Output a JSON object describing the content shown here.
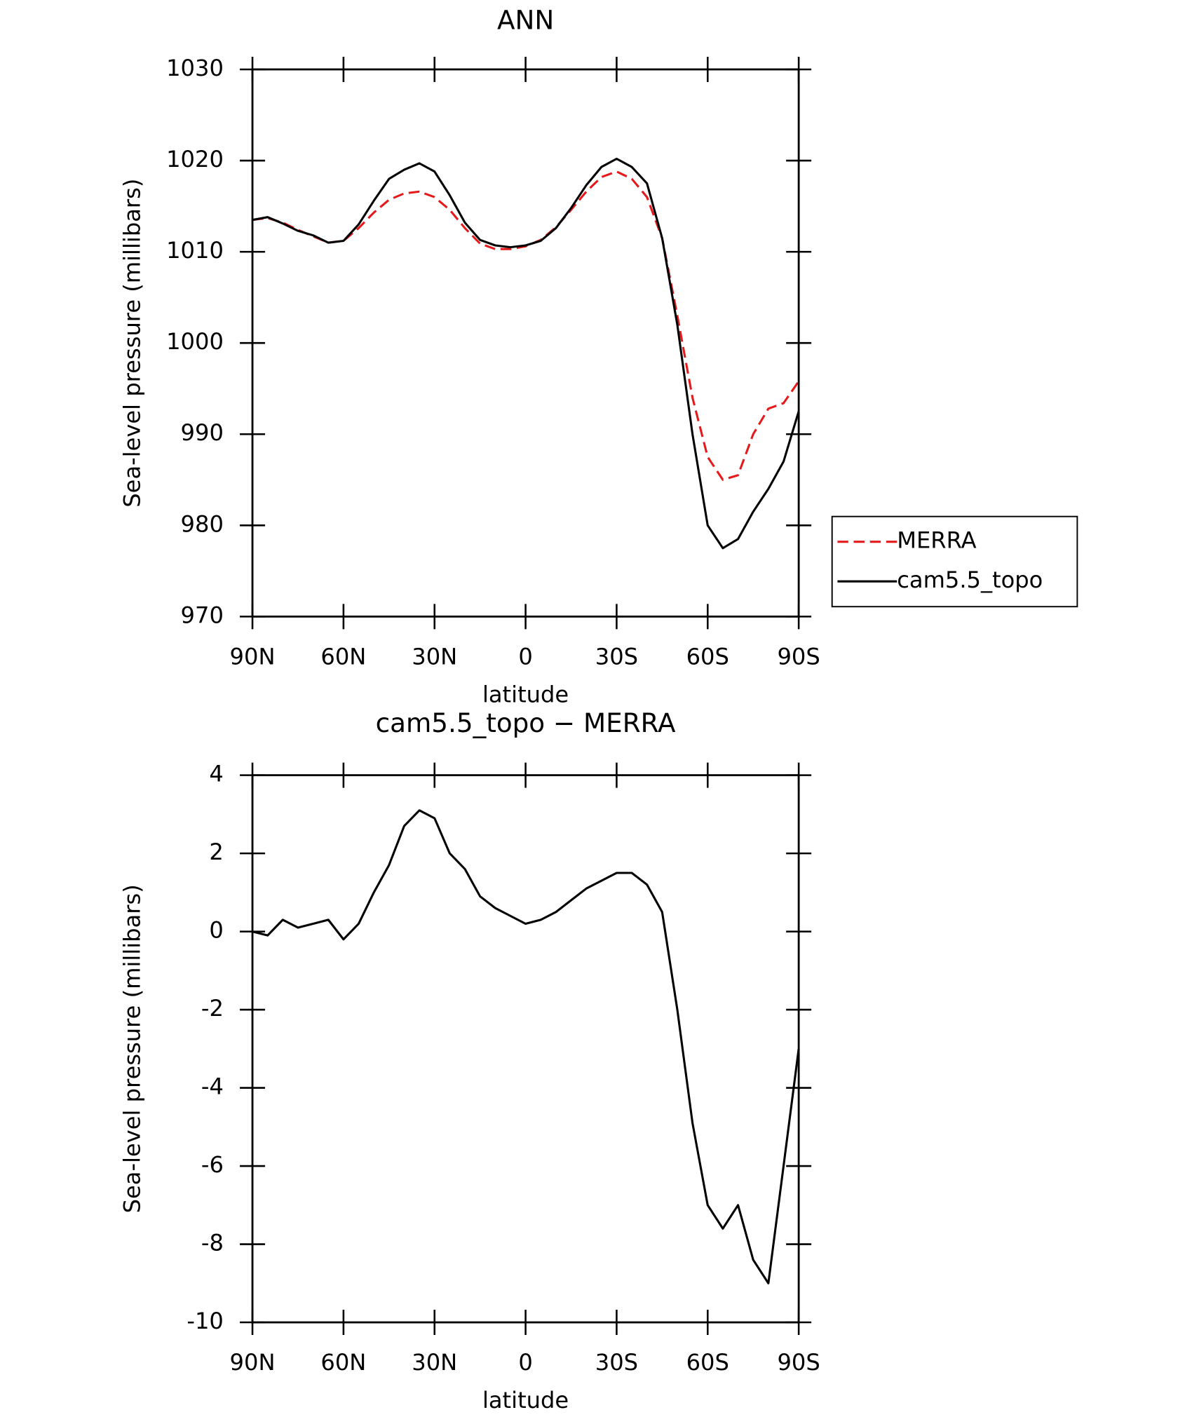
{
  "chart_data": [
    {
      "type": "line",
      "title": "ANN",
      "x_label": "latitude",
      "y_label": "Sea-level pressure (millibars)",
      "x": [
        90,
        85,
        80,
        75,
        70,
        65,
        60,
        55,
        50,
        45,
        40,
        35,
        30,
        25,
        20,
        15,
        10,
        5,
        0,
        -5,
        -10,
        -15,
        -20,
        -25,
        -30,
        -35,
        -40,
        -45,
        -50,
        -55,
        -60,
        -65,
        -70,
        -75,
        -80,
        -85,
        -90
      ],
      "xlim": [
        90,
        -90
      ],
      "xticks": [
        {
          "value": 90,
          "label": "90N"
        },
        {
          "value": 60,
          "label": "60N"
        },
        {
          "value": 30,
          "label": "30N"
        },
        0,
        {
          "value": -30,
          "label": "30S"
        },
        {
          "value": -60,
          "label": "60S"
        },
        {
          "value": -90,
          "label": "90S"
        }
      ],
      "ylim": [
        970,
        1030
      ],
      "yticks": [
        970,
        980,
        990,
        1000,
        1010,
        1020,
        1030
      ],
      "legend": "right",
      "series": [
        {
          "name": "MERRA",
          "color": "#e41a1c",
          "dashed": true,
          "values": [
            1013.5,
            1013.7,
            1013.2,
            1012.4,
            1011.7,
            1011.0,
            1011.2,
            1012.6,
            1014.3,
            1015.7,
            1016.4,
            1016.6,
            1016.0,
            1014.6,
            1012.6,
            1010.9,
            1010.3,
            1010.3,
            1010.6,
            1011.3,
            1012.7,
            1014.6,
            1016.6,
            1018.2,
            1018.8,
            1018.0,
            1016.0,
            1011.5,
            1003.0,
            994.0,
            987.5,
            985.0,
            985.5,
            990.0,
            992.8,
            993.4,
            995.8
          ]
        },
        {
          "name": "cam5.5_topo",
          "color": "#000000",
          "dashed": false,
          "values": [
            1013.5,
            1013.8,
            1013.1,
            1012.3,
            1011.8,
            1011.0,
            1011.2,
            1013.0,
            1015.6,
            1018.0,
            1019.0,
            1019.7,
            1018.8,
            1016.2,
            1013.2,
            1011.3,
            1010.7,
            1010.5,
            1010.7,
            1011.2,
            1012.6,
            1014.8,
            1017.3,
            1019.3,
            1020.2,
            1019.3,
            1017.5,
            1011.5,
            1002.0,
            990.0,
            980.0,
            977.5,
            978.5,
            981.5,
            984.0,
            987.0,
            992.5
          ]
        }
      ]
    },
    {
      "type": "line",
      "title": "cam5.5_topo − MERRA",
      "x_label": "latitude",
      "y_label": "Sea-level pressure (millibars)",
      "x": [
        90,
        85,
        80,
        75,
        70,
        65,
        60,
        55,
        50,
        45,
        40,
        35,
        30,
        25,
        20,
        15,
        10,
        5,
        0,
        -5,
        -10,
        -15,
        -20,
        -25,
        -30,
        -35,
        -40,
        -45,
        -50,
        -55,
        -60,
        -65,
        -70,
        -75,
        -80,
        -85,
        -90
      ],
      "xlim": [
        90,
        -90
      ],
      "xticks": [
        {
          "value": 90,
          "label": "90N"
        },
        {
          "value": 60,
          "label": "60N"
        },
        {
          "value": 30,
          "label": "30N"
        },
        0,
        {
          "value": -30,
          "label": "30S"
        },
        {
          "value": -60,
          "label": "60S"
        },
        {
          "value": -90,
          "label": "90S"
        }
      ],
      "ylim": [
        -10,
        4
      ],
      "yticks": [
        -10,
        -8,
        -6,
        -4,
        -2,
        0,
        2,
        4
      ],
      "series": [
        {
          "color": "#000000",
          "values": [
            0,
            -0.1,
            0.3,
            0.1,
            0.2,
            0.3,
            -0.2,
            0.2,
            1.0,
            1.7,
            2.7,
            3.1,
            2.9,
            2.0,
            1.6,
            0.9,
            0.6,
            0.4,
            0.2,
            0.3,
            0.5,
            0.8,
            1.1,
            1.3,
            1.5,
            1.5,
            1.2,
            0.5,
            -2.0,
            -4.9,
            -7.0,
            -7.6,
            -7.0,
            -8.4,
            -9.0,
            -6.0,
            -3.0
          ]
        }
      ]
    }
  ]
}
